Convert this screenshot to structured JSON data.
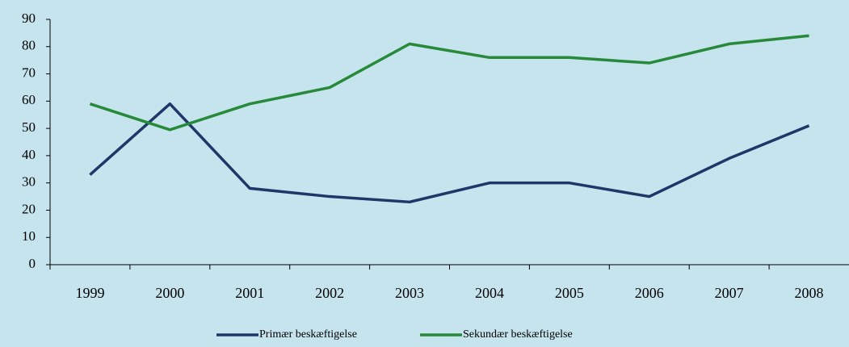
{
  "chart_data": {
    "type": "line",
    "categories": [
      "1999",
      "2000",
      "2001",
      "2002",
      "2003",
      "2004",
      "2005",
      "2006",
      "2007",
      "2008"
    ],
    "series": [
      {
        "name": "Primær beskæftigelse",
        "color": "#1f3768",
        "values": [
          33,
          59,
          28,
          25,
          23,
          30,
          30,
          25,
          39,
          51
        ]
      },
      {
        "name": "Sekundær beskæftigelse",
        "color": "#27893a",
        "values": [
          59,
          49.5,
          59,
          65,
          81,
          76,
          76,
          74,
          81,
          84
        ]
      }
    ],
    "ylim": [
      0,
      90
    ],
    "yticks": [
      0,
      10,
      20,
      30,
      40,
      50,
      60,
      70,
      80,
      90
    ],
    "grid": false,
    "legend": "bottom"
  }
}
